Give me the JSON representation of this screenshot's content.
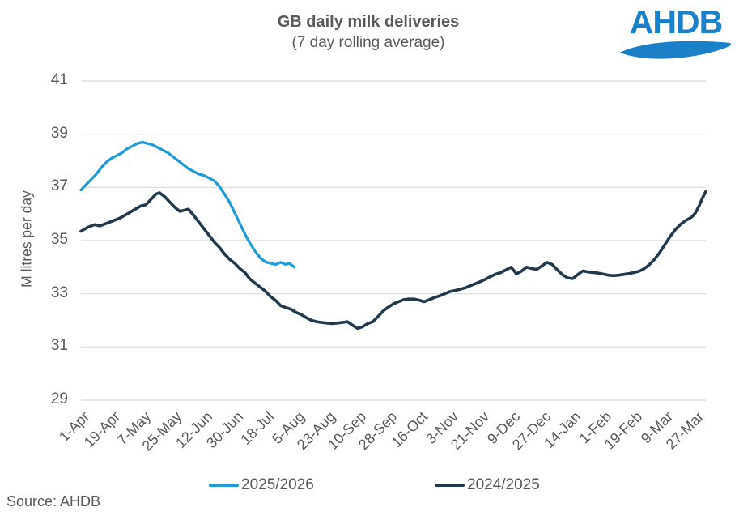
{
  "header": {
    "logo_text": "AHDB"
  },
  "footer": {
    "source": "Source: AHDB"
  },
  "colors": {
    "series_2025_2026": "#1f9bd7",
    "series_2024_2025": "#21394a",
    "grid": "#d9d9d9",
    "text": "#595959",
    "logo_blue": "#1a80c8"
  },
  "chart_data": {
    "type": "line",
    "title": "GB daily milk deliveries",
    "subtitle": "(7 day rolling average)",
    "ylabel": "M litres per day",
    "ylim": [
      29,
      41
    ],
    "yticks": [
      29,
      31,
      33,
      35,
      37,
      39,
      41
    ],
    "grid": "horizontal-only",
    "legend_position": "bottom",
    "x_axis": {
      "unit": "days-from-1-Apr",
      "domain_days": [
        0,
        366
      ],
      "tick_days": [
        0,
        18,
        36,
        54,
        72,
        90,
        108,
        126,
        144,
        162,
        180,
        198,
        216,
        234,
        252,
        270,
        288,
        306,
        324,
        342,
        360
      ],
      "tick_labels": [
        "1-Apr",
        "19-Apr",
        "7-May",
        "25-May",
        "12-Jun",
        "30-Jun",
        "18-Jul",
        "5-Aug",
        "23-Aug",
        "10-Sep",
        "28-Sep",
        "16-Oct",
        "3-Nov",
        "21-Nov",
        "9-Dec",
        "27-Dec",
        "14-Jan",
        "1-Feb",
        "19-Feb",
        "9-Mar",
        "27-Mar"
      ]
    },
    "series": [
      {
        "name": "2025/2026",
        "color": "#1f9bd7",
        "days": [
          0,
          3,
          6,
          9,
          12,
          15,
          18,
          21,
          24,
          27,
          30,
          33,
          36,
          39,
          42,
          45,
          48,
          51,
          54,
          57,
          60,
          63,
          66,
          69,
          72,
          75,
          78,
          81,
          84,
          87,
          90,
          93,
          96,
          99,
          102,
          105,
          108,
          111,
          114,
          117,
          120,
          122,
          125
        ],
        "values": [
          36.9,
          37.1,
          37.3,
          37.5,
          37.75,
          37.95,
          38.1,
          38.2,
          38.3,
          38.45,
          38.55,
          38.65,
          38.7,
          38.65,
          38.6,
          38.5,
          38.4,
          38.3,
          38.15,
          38.0,
          37.85,
          37.7,
          37.6,
          37.5,
          37.45,
          37.35,
          37.25,
          37.05,
          36.75,
          36.45,
          36.05,
          35.65,
          35.25,
          34.9,
          34.6,
          34.35,
          34.2,
          34.15,
          34.1,
          34.18,
          34.1,
          34.15,
          34.0
        ]
      },
      {
        "name": "2024/2025",
        "color": "#21394a",
        "days": [
          0,
          4,
          8,
          11,
          15,
          19,
          23,
          27,
          31,
          35,
          38,
          41,
          44,
          46,
          49,
          52,
          55,
          58,
          61,
          63,
          66,
          69,
          72,
          75,
          78,
          81,
          84,
          87,
          90,
          93,
          96,
          99,
          102,
          105,
          108,
          111,
          114,
          117,
          120,
          123,
          126,
          129,
          132,
          135,
          138,
          141,
          144,
          147,
          150,
          153,
          156,
          159,
          162,
          165,
          168,
          171,
          174,
          177,
          180,
          183,
          186,
          189,
          192,
          195,
          198,
          201,
          204,
          207,
          210,
          213,
          216,
          219,
          222,
          225,
          228,
          231,
          234,
          237,
          240,
          243,
          246,
          249,
          252,
          255,
          258,
          261,
          264,
          267,
          270,
          273,
          276,
          279,
          282,
          285,
          288,
          291,
          294,
          297,
          300,
          303,
          306,
          309,
          312,
          315,
          318,
          321,
          324,
          327,
          330,
          333,
          336,
          339,
          342,
          345,
          348,
          351,
          354,
          356,
          358,
          360,
          362,
          364,
          366
        ],
        "values": [
          35.35,
          35.5,
          35.6,
          35.55,
          35.65,
          35.75,
          35.85,
          36.0,
          36.15,
          36.3,
          36.35,
          36.55,
          36.75,
          36.8,
          36.65,
          36.45,
          36.25,
          36.1,
          36.15,
          36.18,
          35.95,
          35.7,
          35.45,
          35.2,
          34.95,
          34.75,
          34.5,
          34.3,
          34.15,
          33.95,
          33.8,
          33.55,
          33.4,
          33.25,
          33.1,
          32.9,
          32.75,
          32.55,
          32.48,
          32.42,
          32.3,
          32.22,
          32.1,
          32.0,
          31.95,
          31.92,
          31.9,
          31.88,
          31.9,
          31.92,
          31.95,
          31.82,
          31.7,
          31.76,
          31.88,
          31.95,
          32.15,
          32.35,
          32.5,
          32.62,
          32.7,
          32.78,
          32.8,
          32.8,
          32.76,
          32.7,
          32.78,
          32.86,
          32.92,
          33.0,
          33.08,
          33.12,
          33.17,
          33.22,
          33.3,
          33.38,
          33.46,
          33.55,
          33.65,
          33.74,
          33.8,
          33.9,
          34.0,
          33.75,
          33.85,
          34.0,
          33.95,
          33.92,
          34.05,
          34.18,
          34.1,
          33.9,
          33.72,
          33.6,
          33.57,
          33.72,
          33.86,
          33.82,
          33.8,
          33.78,
          33.74,
          33.7,
          33.68,
          33.7,
          33.73,
          33.76,
          33.8,
          33.85,
          33.95,
          34.1,
          34.3,
          34.55,
          34.85,
          35.15,
          35.4,
          35.6,
          35.75,
          35.82,
          35.9,
          36.05,
          36.3,
          36.6,
          36.85
        ]
      }
    ]
  }
}
